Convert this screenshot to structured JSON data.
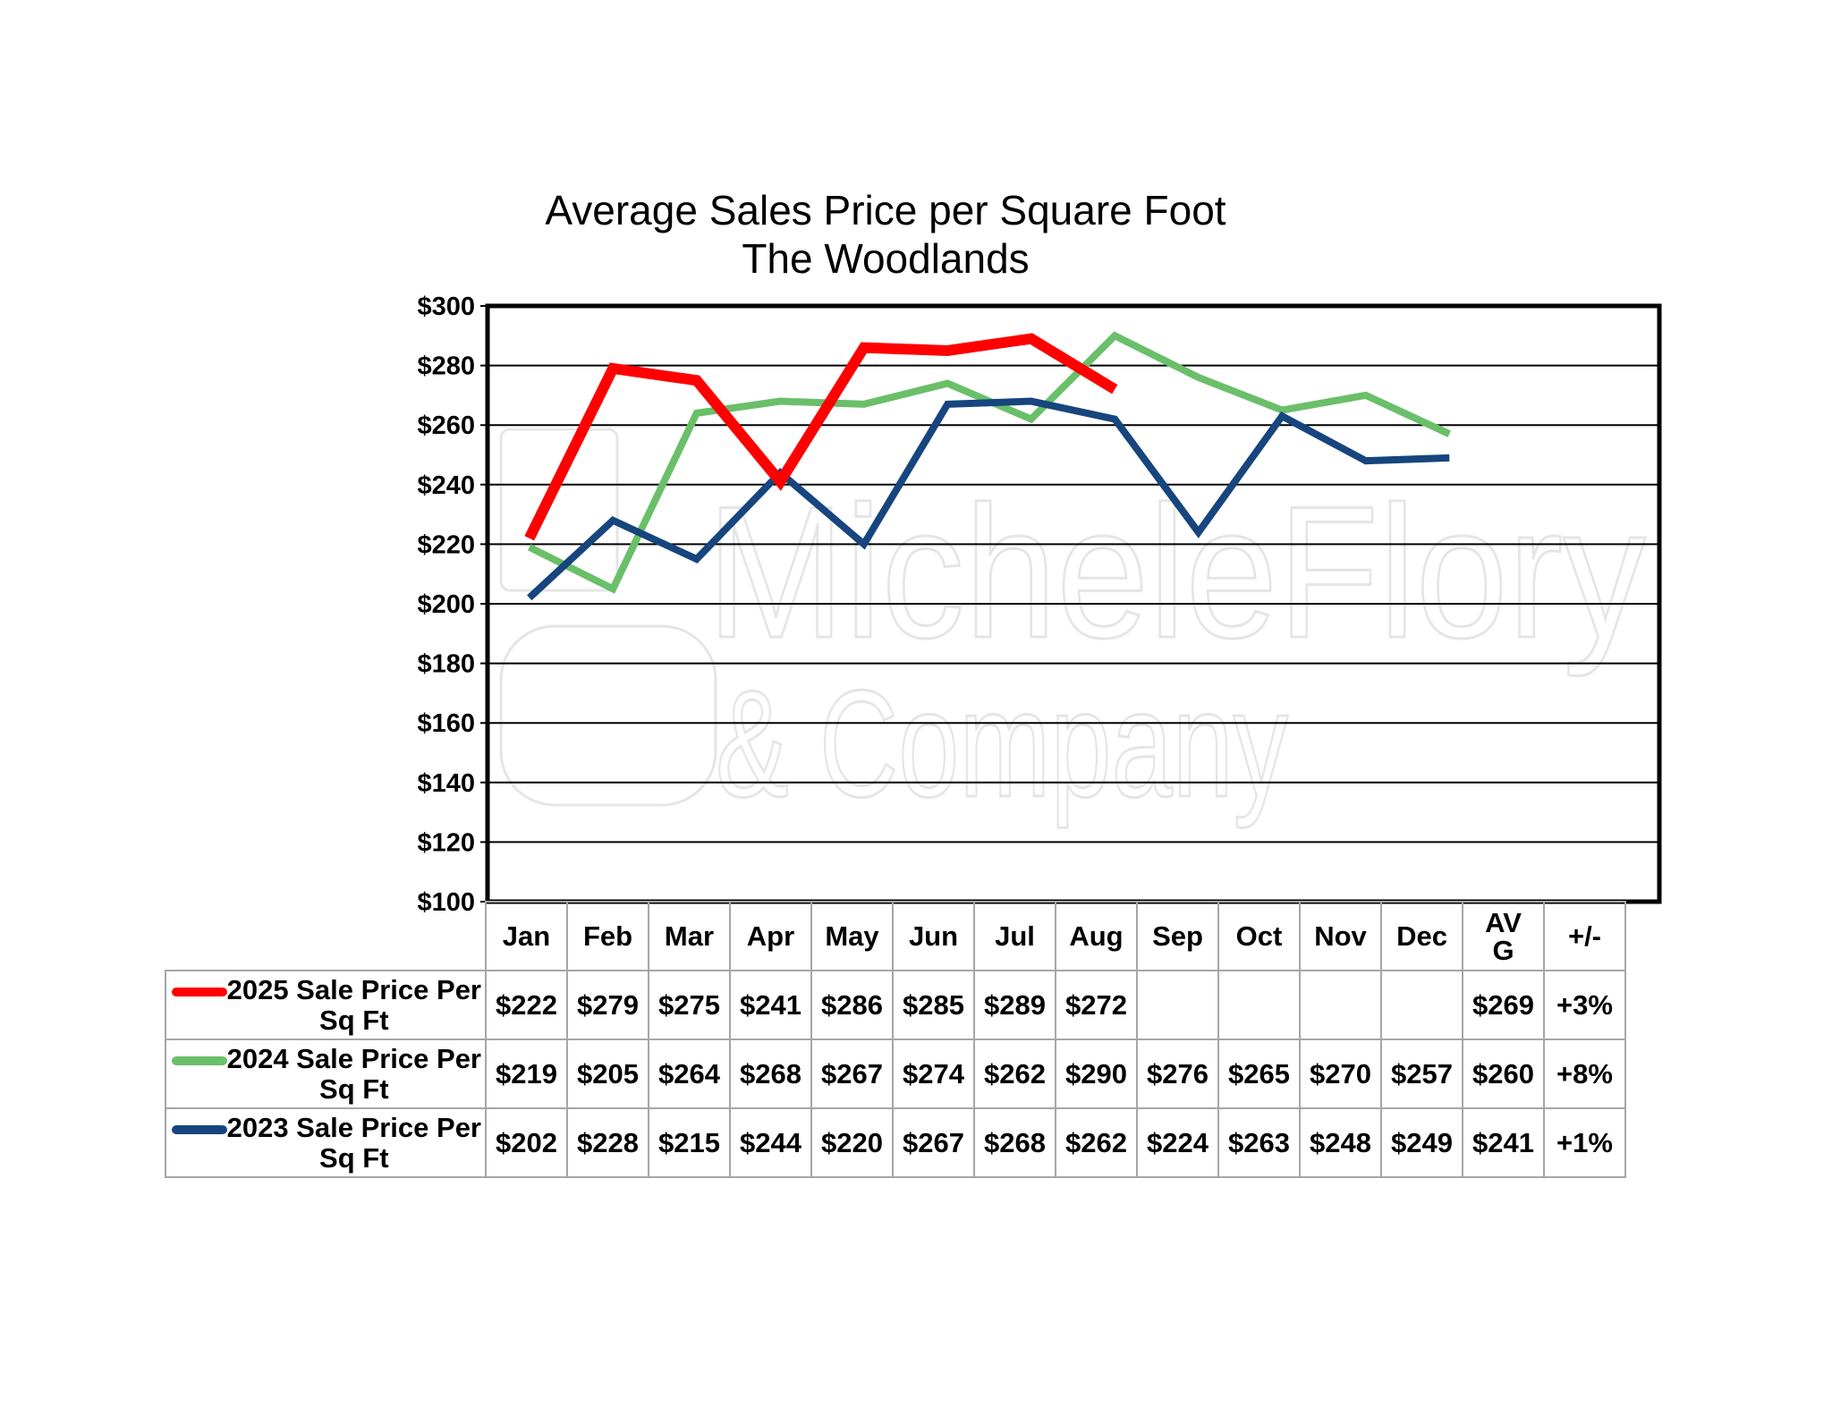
{
  "chart_data": {
    "type": "line",
    "title": "Average Sales Price per Square Foot",
    "subtitle": "The Woodlands",
    "categories": [
      "Jan",
      "Feb",
      "Mar",
      "Apr",
      "May",
      "Jun",
      "Jul",
      "Aug",
      "Sep",
      "Oct",
      "Nov",
      "Dec"
    ],
    "ylim": [
      100,
      300
    ],
    "yticks": [
      "$300",
      "$280",
      "$260",
      "$240",
      "$220",
      "$200",
      "$180",
      "$160",
      "$140",
      "$120",
      "$100"
    ],
    "ytick_values": [
      300,
      280,
      260,
      240,
      220,
      200,
      180,
      160,
      140,
      120,
      100
    ],
    "grid": true,
    "series": [
      {
        "name": "2025 Sale Price Per Sq Ft",
        "color": "#ff0000",
        "values": [
          222,
          279,
          275,
          241,
          286,
          285,
          289,
          272,
          null,
          null,
          null,
          null
        ]
      },
      {
        "name": "2024 Sale Price Per Sq Ft",
        "color": "#6abf69",
        "values": [
          219,
          205,
          264,
          268,
          267,
          274,
          262,
          290,
          276,
          265,
          270,
          257
        ]
      },
      {
        "name": "2023 Sale Price Per Sq Ft",
        "color": "#17457e",
        "values": [
          202,
          228,
          215,
          244,
          220,
          267,
          268,
          262,
          224,
          263,
          248,
          249
        ]
      }
    ]
  },
  "table": {
    "headers": [
      "Jan",
      "Feb",
      "Mar",
      "Apr",
      "May",
      "Jun",
      "Jul",
      "Aug",
      "Sep",
      "Oct",
      "Nov",
      "Dec"
    ],
    "avg_header_line1": "AV",
    "avg_header_line2": "G",
    "change_header": "+/-",
    "rows": [
      {
        "label_line1": "2025 Sale Price Per",
        "label_line2": "Sq Ft",
        "cells": [
          "$222",
          "$279",
          "$275",
          "$241",
          "$286",
          "$285",
          "$289",
          "$272",
          "",
          "",
          "",
          ""
        ],
        "avg": "$269",
        "change": "+3%"
      },
      {
        "label_line1": "2024 Sale Price Per",
        "label_line2": "Sq Ft",
        "cells": [
          "$219",
          "$205",
          "$264",
          "$268",
          "$267",
          "$274",
          "$262",
          "$290",
          "$276",
          "$265",
          "$270",
          "$257"
        ],
        "avg": "$260",
        "change": "+8%"
      },
      {
        "label_line1": "2023 Sale Price Per",
        "label_line2": "Sq Ft",
        "cells": [
          "$202",
          "$228",
          "$215",
          "$244",
          "$220",
          "$267",
          "$268",
          "$262",
          "$224",
          "$263",
          "$248",
          "$249"
        ],
        "avg": "$241",
        "change": "+1%"
      }
    ]
  },
  "watermark": {
    "line1": "MicheleFlory",
    "line2": "& Company"
  }
}
